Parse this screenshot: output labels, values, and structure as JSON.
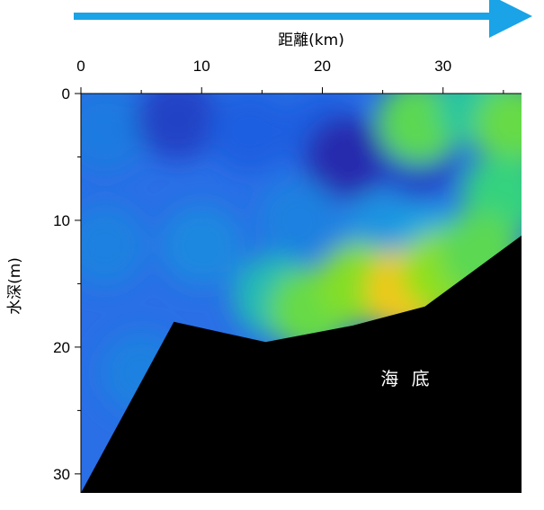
{
  "chart_data": {
    "type": "heatmap",
    "title": "",
    "xlabel": "距離(km)",
    "ylabel": "水深(m)",
    "xlim": [
      0,
      36.5
    ],
    "ylim": [
      0,
      31.5
    ],
    "x_ticks": [
      0,
      10,
      20,
      30
    ],
    "y_ticks": [
      0,
      10,
      20,
      30
    ],
    "x_axis_position": "top",
    "y_axis_inverted": true,
    "direction_arrow": "left-to-right",
    "colormap": [
      "#2a1a9c",
      "#1e5ee0",
      "#1aa4e0",
      "#2ad08a",
      "#8ee01a",
      "#f0c81a"
    ],
    "field": [
      {
        "x": 2,
        "y": 3,
        "value": 0.28
      },
      {
        "x": 8,
        "y": 2,
        "value": 0.12
      },
      {
        "x": 14,
        "y": 3,
        "value": 0.2
      },
      {
        "x": 20,
        "y": 3,
        "value": 0.2
      },
      {
        "x": 22,
        "y": 5,
        "value": 0.05
      },
      {
        "x": 28,
        "y": 5,
        "value": 0.12
      },
      {
        "x": 28,
        "y": 2.3,
        "value": 0.7
      },
      {
        "x": 33,
        "y": 1,
        "value": 0.55
      },
      {
        "x": 36,
        "y": 2.5,
        "value": 0.72
      },
      {
        "x": 35,
        "y": 8,
        "value": 0.62
      },
      {
        "x": 2,
        "y": 12,
        "value": 0.3
      },
      {
        "x": 10,
        "y": 12,
        "value": 0.32
      },
      {
        "x": 18,
        "y": 10,
        "value": 0.3
      },
      {
        "x": 25,
        "y": 11,
        "value": 0.35
      },
      {
        "x": 29,
        "y": 12,
        "value": 0.4
      },
      {
        "x": 5,
        "y": 22,
        "value": 0.3
      },
      {
        "x": 16,
        "y": 16,
        "value": 0.5
      },
      {
        "x": 19,
        "y": 17,
        "value": 0.72
      },
      {
        "x": 23,
        "y": 15,
        "value": 0.78
      },
      {
        "x": 27,
        "y": 15.5,
        "value": 1.0
      },
      {
        "x": 30,
        "y": 14,
        "value": 0.8
      },
      {
        "x": 33,
        "y": 12.5,
        "value": 0.7
      }
    ],
    "seabed_profile": [
      {
        "x": 0,
        "y": 31.5
      },
      {
        "x": 7.7,
        "y": 18
      },
      {
        "x": 15.3,
        "y": 19.6
      },
      {
        "x": 22.5,
        "y": 18.3
      },
      {
        "x": 28.5,
        "y": 16.8
      },
      {
        "x": 36.5,
        "y": 11.2
      }
    ],
    "annotations": [
      {
        "text": "海 底",
        "x": 27,
        "y": 22.5
      }
    ]
  }
}
